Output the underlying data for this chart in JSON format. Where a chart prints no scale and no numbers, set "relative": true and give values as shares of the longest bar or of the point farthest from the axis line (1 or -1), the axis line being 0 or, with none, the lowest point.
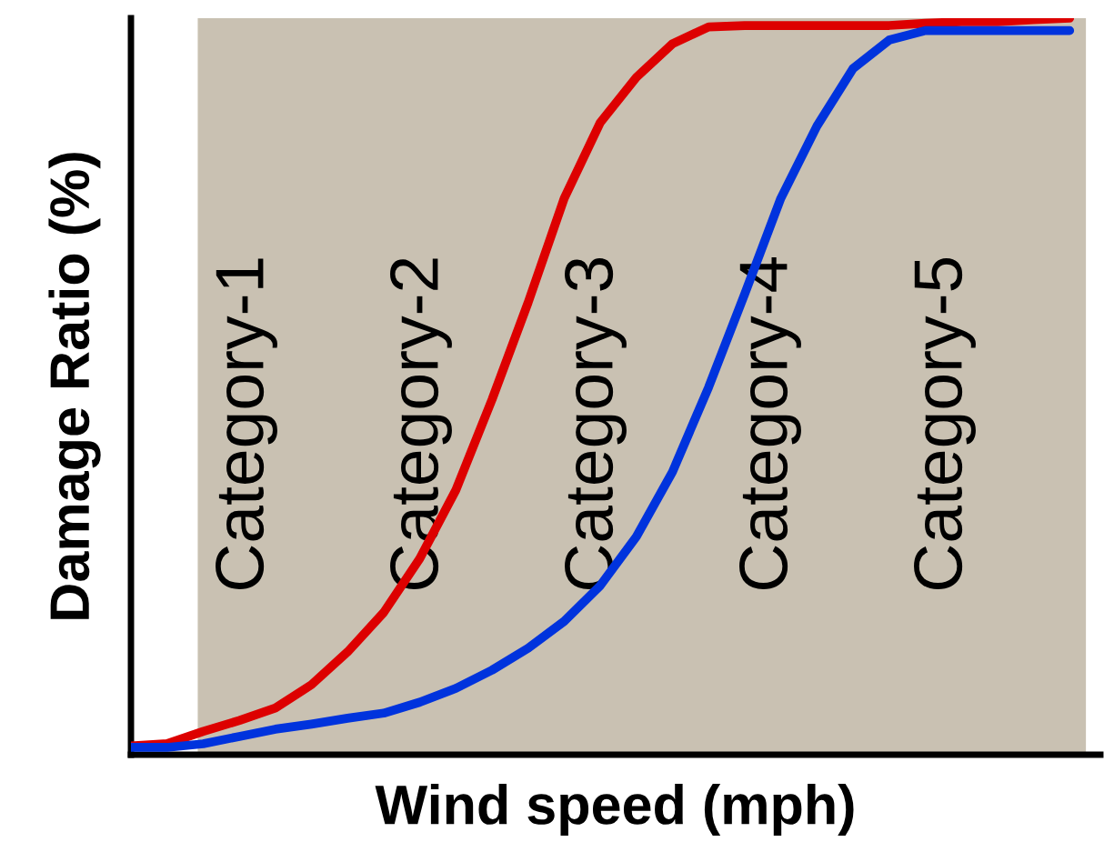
{
  "chart_data": {
    "type": "line",
    "relative": true,
    "xlabel": "Wind speed (mph)",
    "ylabel": "Damage Ratio (%)",
    "categories": [
      null,
      null,
      null,
      null,
      null,
      null,
      null,
      null,
      null,
      null,
      null,
      null,
      null,
      null,
      null,
      null,
      null,
      null,
      null,
      null,
      null,
      null,
      null,
      null,
      null,
      null,
      null
    ],
    "series": [
      {
        "color": "#dd0000",
        "values": [
          0.002,
          0.005,
          0.022,
          0.037,
          0.054,
          0.086,
          0.131,
          0.185,
          0.259,
          0.353,
          0.477,
          0.61,
          0.753,
          0.857,
          0.919,
          0.965,
          0.988,
          0.99,
          0.99,
          0.99,
          0.99,
          0.99,
          0.993,
          0.995,
          0.995,
          0.998,
          1.0
        ]
      },
      {
        "color": "#0033dd",
        "values": [
          0.0,
          0.0,
          0.005,
          0.015,
          0.025,
          0.032,
          0.04,
          0.047,
          0.062,
          0.081,
          0.106,
          0.136,
          0.173,
          0.222,
          0.289,
          0.378,
          0.494,
          0.622,
          0.753,
          0.852,
          0.931,
          0.97,
          0.983,
          0.983,
          0.983,
          0.983,
          0.983
        ]
      }
    ],
    "annotations": [
      "Category-1",
      "Category-2",
      "Category-3",
      "Category-4",
      "Category-5"
    ],
    "line_style": "solid",
    "grid": false,
    "legend": false
  }
}
